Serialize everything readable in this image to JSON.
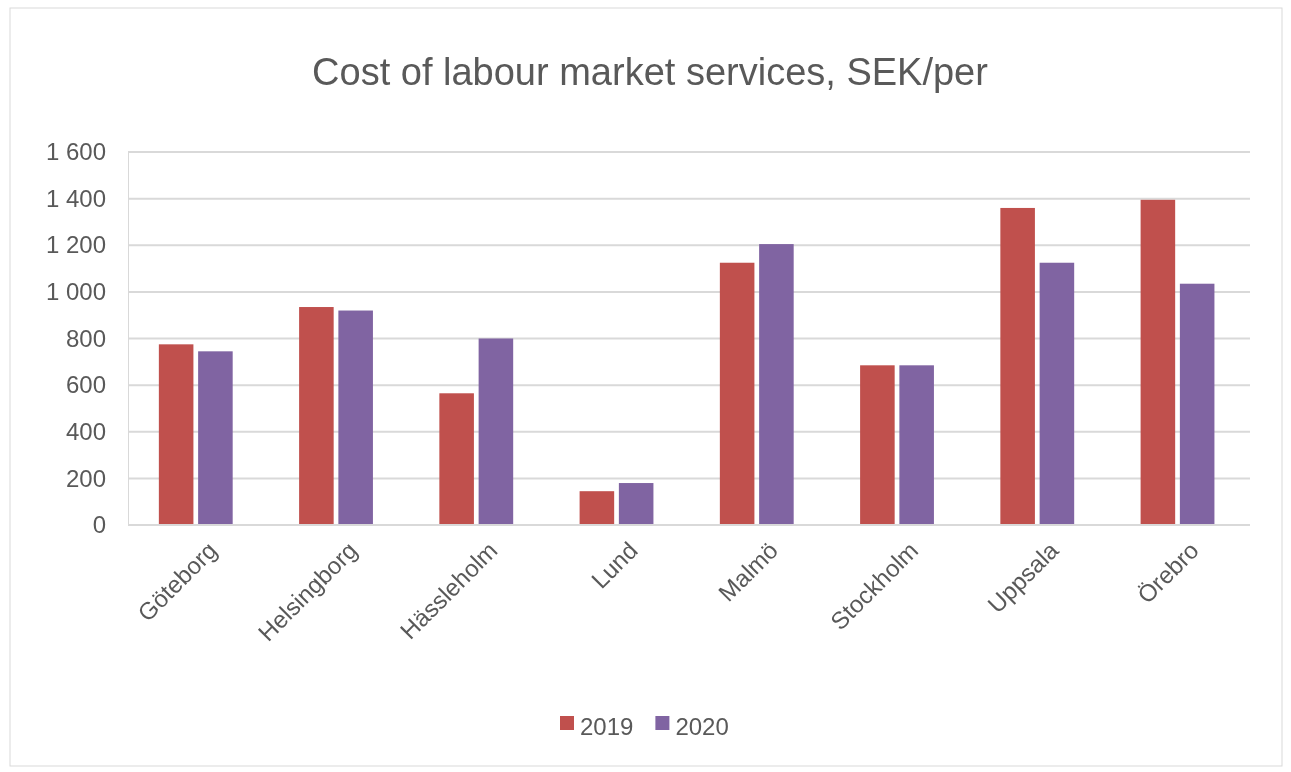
{
  "chart_data": {
    "type": "bar",
    "title": "Cost of labour market services, SEK/per",
    "categories": [
      "Göteborg",
      "Helsingborg",
      "Hässleholm",
      "Lund",
      "Malmö",
      "Stockholm",
      "Uppsala",
      "Örebro"
    ],
    "series": [
      {
        "name": "2019",
        "color": "#c0504d",
        "values": [
          775,
          935,
          565,
          145,
          1125,
          685,
          1360,
          1395
        ]
      },
      {
        "name": "2020",
        "color": "#8064a2",
        "values": [
          745,
          920,
          800,
          180,
          1205,
          685,
          1125,
          1035
        ]
      }
    ],
    "ylim": [
      0,
      1600
    ],
    "yticks": [
      {
        "value": 0,
        "label": "0"
      },
      {
        "value": 200,
        "label": "200"
      },
      {
        "value": 400,
        "label": "400"
      },
      {
        "value": 600,
        "label": "600"
      },
      {
        "value": 800,
        "label": "800"
      },
      {
        "value": 1000,
        "label": "1 000"
      },
      {
        "value": 1200,
        "label": "1 200"
      },
      {
        "value": 1400,
        "label": "1 400"
      },
      {
        "value": 1600,
        "label": "1 600"
      }
    ],
    "grid": "y",
    "legend": "bottom"
  }
}
